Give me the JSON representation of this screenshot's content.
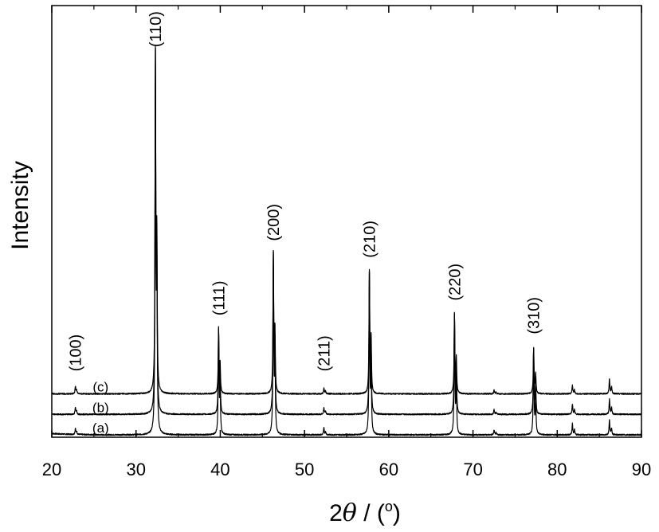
{
  "chart_data": {
    "type": "line",
    "xlabel": {
      "prefix": "2",
      "theta": "θ",
      "slash": " / (",
      "degree": "o",
      "close": ")"
    },
    "ylabel": "Intensity",
    "xlim": [
      20,
      90
    ],
    "ylim": [
      0,
      100
    ],
    "xticks": [
      20,
      30,
      40,
      50,
      60,
      70,
      80,
      90
    ],
    "xtick_labels": [
      "20",
      "30",
      "40",
      "50",
      "60",
      "70",
      "80",
      "90"
    ],
    "grid": false,
    "series": [
      {
        "name": "(a)",
        "offset": 0,
        "peaks": [
          {
            "x": 22.8,
            "h": 1.6
          },
          {
            "x": 32.3,
            "h": 100
          },
          {
            "x": 39.8,
            "h": 28
          },
          {
            "x": 46.3,
            "h": 48
          },
          {
            "x": 52.3,
            "h": 1.8
          },
          {
            "x": 57.7,
            "h": 43
          },
          {
            "x": 67.8,
            "h": 32
          },
          {
            "x": 72.5,
            "h": 1.2
          },
          {
            "x": 77.2,
            "h": 23
          },
          {
            "x": 81.8,
            "h": 3.0
          },
          {
            "x": 86.2,
            "h": 4.0
          }
        ]
      },
      {
        "name": "(b)",
        "offset": 5.5,
        "peaks": [
          {
            "x": 22.8,
            "h": 1.8
          },
          {
            "x": 32.3,
            "h": 94.5
          },
          {
            "x": 39.8,
            "h": 22.5
          },
          {
            "x": 46.3,
            "h": 42.5
          },
          {
            "x": 52.3,
            "h": 1.8
          },
          {
            "x": 57.7,
            "h": 37.5
          },
          {
            "x": 67.8,
            "h": 26.5
          },
          {
            "x": 72.5,
            "h": 1.2
          },
          {
            "x": 77.2,
            "h": 17.5
          },
          {
            "x": 81.8,
            "h": 2.8
          },
          {
            "x": 86.2,
            "h": 4.0
          }
        ]
      },
      {
        "name": "(c)",
        "offset": 11,
        "peaks": [
          {
            "x": 22.8,
            "h": 2.0
          },
          {
            "x": 32.3,
            "h": 89
          },
          {
            "x": 39.8,
            "h": 17
          },
          {
            "x": 46.3,
            "h": 37
          },
          {
            "x": 52.3,
            "h": 1.6
          },
          {
            "x": 57.7,
            "h": 32
          },
          {
            "x": 67.8,
            "h": 21
          },
          {
            "x": 72.5,
            "h": 1.0
          },
          {
            "x": 77.2,
            "h": 12
          },
          {
            "x": 81.8,
            "h": 2.4
          },
          {
            "x": 86.2,
            "h": 4.0
          }
        ]
      }
    ],
    "annotations": [
      {
        "text": "(100)",
        "x": 22.8,
        "y": 17
      },
      {
        "text": "(110)",
        "x": 32.3,
        "y": 104
      },
      {
        "text": "(111)",
        "x": 39.8,
        "y": 32
      },
      {
        "text": "(200)",
        "x": 46.3,
        "y": 52
      },
      {
        "text": "(211)",
        "x": 52.3,
        "y": 17
      },
      {
        "text": "(210)",
        "x": 57.7,
        "y": 47.5
      },
      {
        "text": "(220)",
        "x": 67.8,
        "y": 36
      },
      {
        "text": "(310)",
        "x": 77.2,
        "y": 27
      }
    ]
  }
}
